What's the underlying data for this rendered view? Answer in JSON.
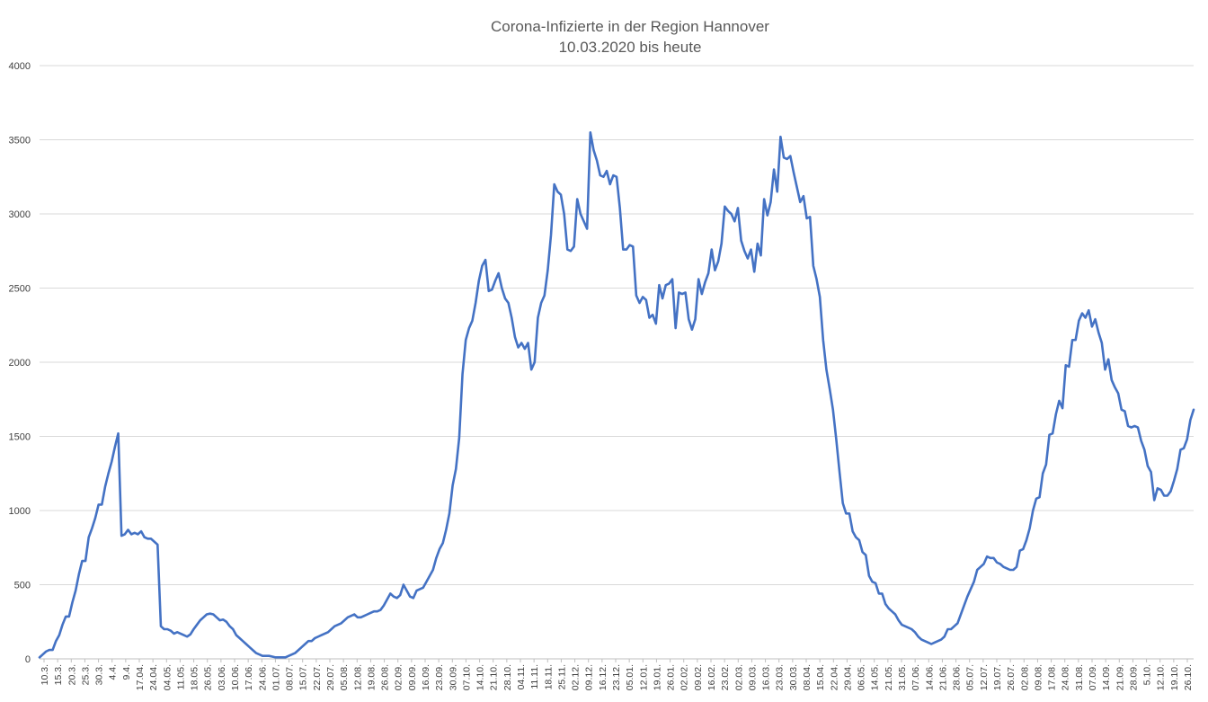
{
  "chart_data": {
    "type": "line",
    "title": "Corona-Infizierte in der Region Hannover",
    "subtitle": "10.03.2020 bis heute",
    "xlabel": "",
    "ylabel": "",
    "ylim": [
      0,
      4000
    ],
    "yticks": [
      0,
      500,
      1000,
      1500,
      2000,
      2500,
      3000,
      3500,
      4000
    ],
    "grid": "horizontal",
    "legend": "none",
    "line_color": "#4472C4",
    "x_labels": [
      "10.3.",
      "15.3.",
      "20.3.",
      "25.3.",
      "30.3.",
      "4.4.",
      "9.4.",
      "17.04.",
      "24.04.",
      "04.05.",
      "11.05.",
      "18.05.",
      "26.05.",
      "03.06.",
      "10.06.",
      "17.06.",
      "24.06.",
      "01.07.",
      "08.07.",
      "15.07.",
      "22.07.",
      "29.07.",
      "05.08.",
      "12.08.",
      "19.08.",
      "26.08.",
      "02.09.",
      "09.09.",
      "16.09.",
      "23.09.",
      "30.09.",
      "07.10.",
      "14.10.",
      "21.10.",
      "28.10.",
      "04.11.",
      "11.11.",
      "18.11.",
      "25.11.",
      "02.12.",
      "09.12.",
      "16.12.",
      "23.12.",
      "05.01.",
      "12.01.",
      "19.01.",
      "26.01.",
      "02.02.",
      "09.02.",
      "16.02.",
      "23.02.",
      "02.03.",
      "09.03.",
      "16.03.",
      "23.03.",
      "30.03.",
      "08.04.",
      "15.04.",
      "22.04.",
      "29.04.",
      "06.05.",
      "14.05.",
      "21.05.",
      "31.05.",
      "07.06.",
      "14.06.",
      "21.06.",
      "28.06.",
      "05.07.",
      "12.07.",
      "19.07.",
      "26.07.",
      "02.08.",
      "09.08.",
      "17.08.",
      "24.08.",
      "31.08.",
      "07.09.",
      "14.09.",
      "21.09.",
      "28.09.",
      "5.10.",
      "12.10.",
      "19.10.",
      "26.10."
    ],
    "values": [
      10,
      30,
      50,
      60,
      60,
      120,
      160,
      230,
      285,
      285,
      380,
      460,
      570,
      660,
      660,
      820,
      880,
      950,
      1040,
      1040,
      1160,
      1250,
      1330,
      1430,
      1520,
      830,
      840,
      870,
      840,
      850,
      840,
      860,
      820,
      810,
      810,
      790,
      770,
      220,
      200,
      200,
      190,
      170,
      180,
      170,
      160,
      150,
      165,
      200,
      230,
      260,
      280,
      300,
      305,
      300,
      280,
      260,
      265,
      250,
      220,
      200,
      160,
      140,
      120,
      100,
      80,
      60,
      40,
      30,
      20,
      20,
      20,
      15,
      10,
      10,
      10,
      10,
      20,
      30,
      40,
      60,
      80,
      100,
      120,
      120,
      140,
      150,
      160,
      170,
      180,
      200,
      220,
      230,
      240,
      260,
      280,
      290,
      300,
      280,
      280,
      290,
      300,
      310,
      320,
      320,
      330,
      360,
      400,
      440,
      420,
      410,
      430,
      500,
      460,
      420,
      410,
      460,
      470,
      480,
      520,
      560,
      600,
      680,
      740,
      780,
      870,
      980,
      1170,
      1280,
      1490,
      1920,
      2150,
      2230,
      2280,
      2400,
      2550,
      2650,
      2690,
      2480,
      2490,
      2550,
      2600,
      2500,
      2430,
      2400,
      2300,
      2170,
      2100,
      2130,
      2090,
      2130,
      1950,
      2000,
      2300,
      2400,
      2450,
      2620,
      2860,
      3200,
      3150,
      3130,
      3000,
      2760,
      2750,
      2780,
      3100,
      3000,
      2950,
      2900,
      3550,
      3430,
      3360,
      3260,
      3250,
      3290,
      3200,
      3260,
      3250,
      3040,
      2760,
      2760,
      2790,
      2780,
      2450,
      2400,
      2440,
      2420,
      2300,
      2320,
      2260,
      2520,
      2430,
      2520,
      2530,
      2560,
      2230,
      2470,
      2460,
      2470,
      2290,
      2220,
      2290,
      2560,
      2460,
      2540,
      2600,
      2760,
      2620,
      2680,
      2800,
      3050,
      3020,
      3000,
      2950,
      3040,
      2820,
      2750,
      2700,
      2760,
      2610,
      2800,
      2720,
      3100,
      2990,
      3080,
      3300,
      3150,
      3520,
      3380,
      3370,
      3390,
      3280,
      3180,
      3080,
      3120,
      2970,
      2980,
      2650,
      2560,
      2440,
      2150,
      1950,
      1820,
      1680,
      1480,
      1260,
      1050,
      980,
      980,
      860,
      820,
      800,
      720,
      700,
      560,
      520,
      510,
      440,
      440,
      370,
      340,
      320,
      300,
      260,
      230,
      220,
      210,
      200,
      180,
      150,
      130,
      120,
      110,
      100,
      110,
      120,
      130,
      150,
      200,
      200,
      220,
      240,
      300,
      360,
      420,
      470,
      520,
      600,
      620,
      640,
      690,
      680,
      680,
      650,
      640,
      620,
      610,
      600,
      600,
      620,
      730,
      740,
      800,
      880,
      1000,
      1080,
      1090,
      1250,
      1310,
      1510,
      1520,
      1650,
      1740,
      1690,
      1980,
      1970,
      2150,
      2150,
      2280,
      2330,
      2300,
      2350,
      2240,
      2290,
      2200,
      2130,
      1950,
      2020,
      1880,
      1830,
      1790,
      1680,
      1670,
      1570,
      1560,
      1570,
      1560,
      1470,
      1410,
      1300,
      1260,
      1070,
      1150,
      1140,
      1100,
      1100,
      1130,
      1200,
      1280,
      1410,
      1420,
      1480,
      1610,
      1680
    ]
  }
}
